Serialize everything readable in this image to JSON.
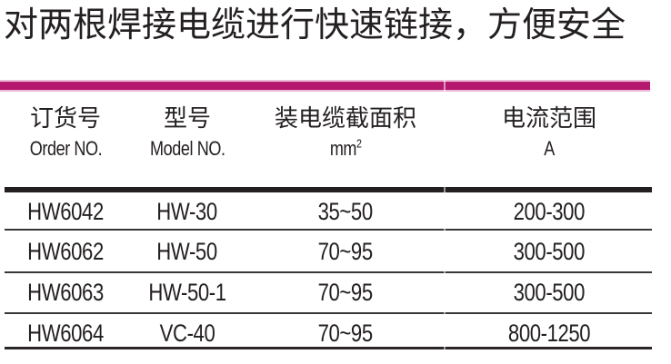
{
  "title": "对两根焊接电缆进行快速链接，方便安全",
  "colors": {
    "accent": "#b5196d",
    "accent_light": "#edbcd8",
    "rule_dark": "#231f20",
    "text": "#242021"
  },
  "table": {
    "columns": [
      {
        "zh": "订货号",
        "en": "Order NO."
      },
      {
        "zh": "型号",
        "en": "Model NO."
      },
      {
        "zh": "装电缆截面积",
        "en": "mm",
        "en_sup": "2"
      },
      {
        "zh": "电流范围",
        "en": "A"
      }
    ],
    "rows": [
      [
        "HW6042",
        "HW-30",
        "35~50",
        "200-300"
      ],
      [
        "HW6062",
        "HW-50",
        "70~95",
        "300-500"
      ],
      [
        "HW6063",
        "HW-50-1",
        "70~95",
        "300-500"
      ],
      [
        "HW6064",
        "VC-40",
        "70~95",
        "800-1250"
      ]
    ]
  }
}
